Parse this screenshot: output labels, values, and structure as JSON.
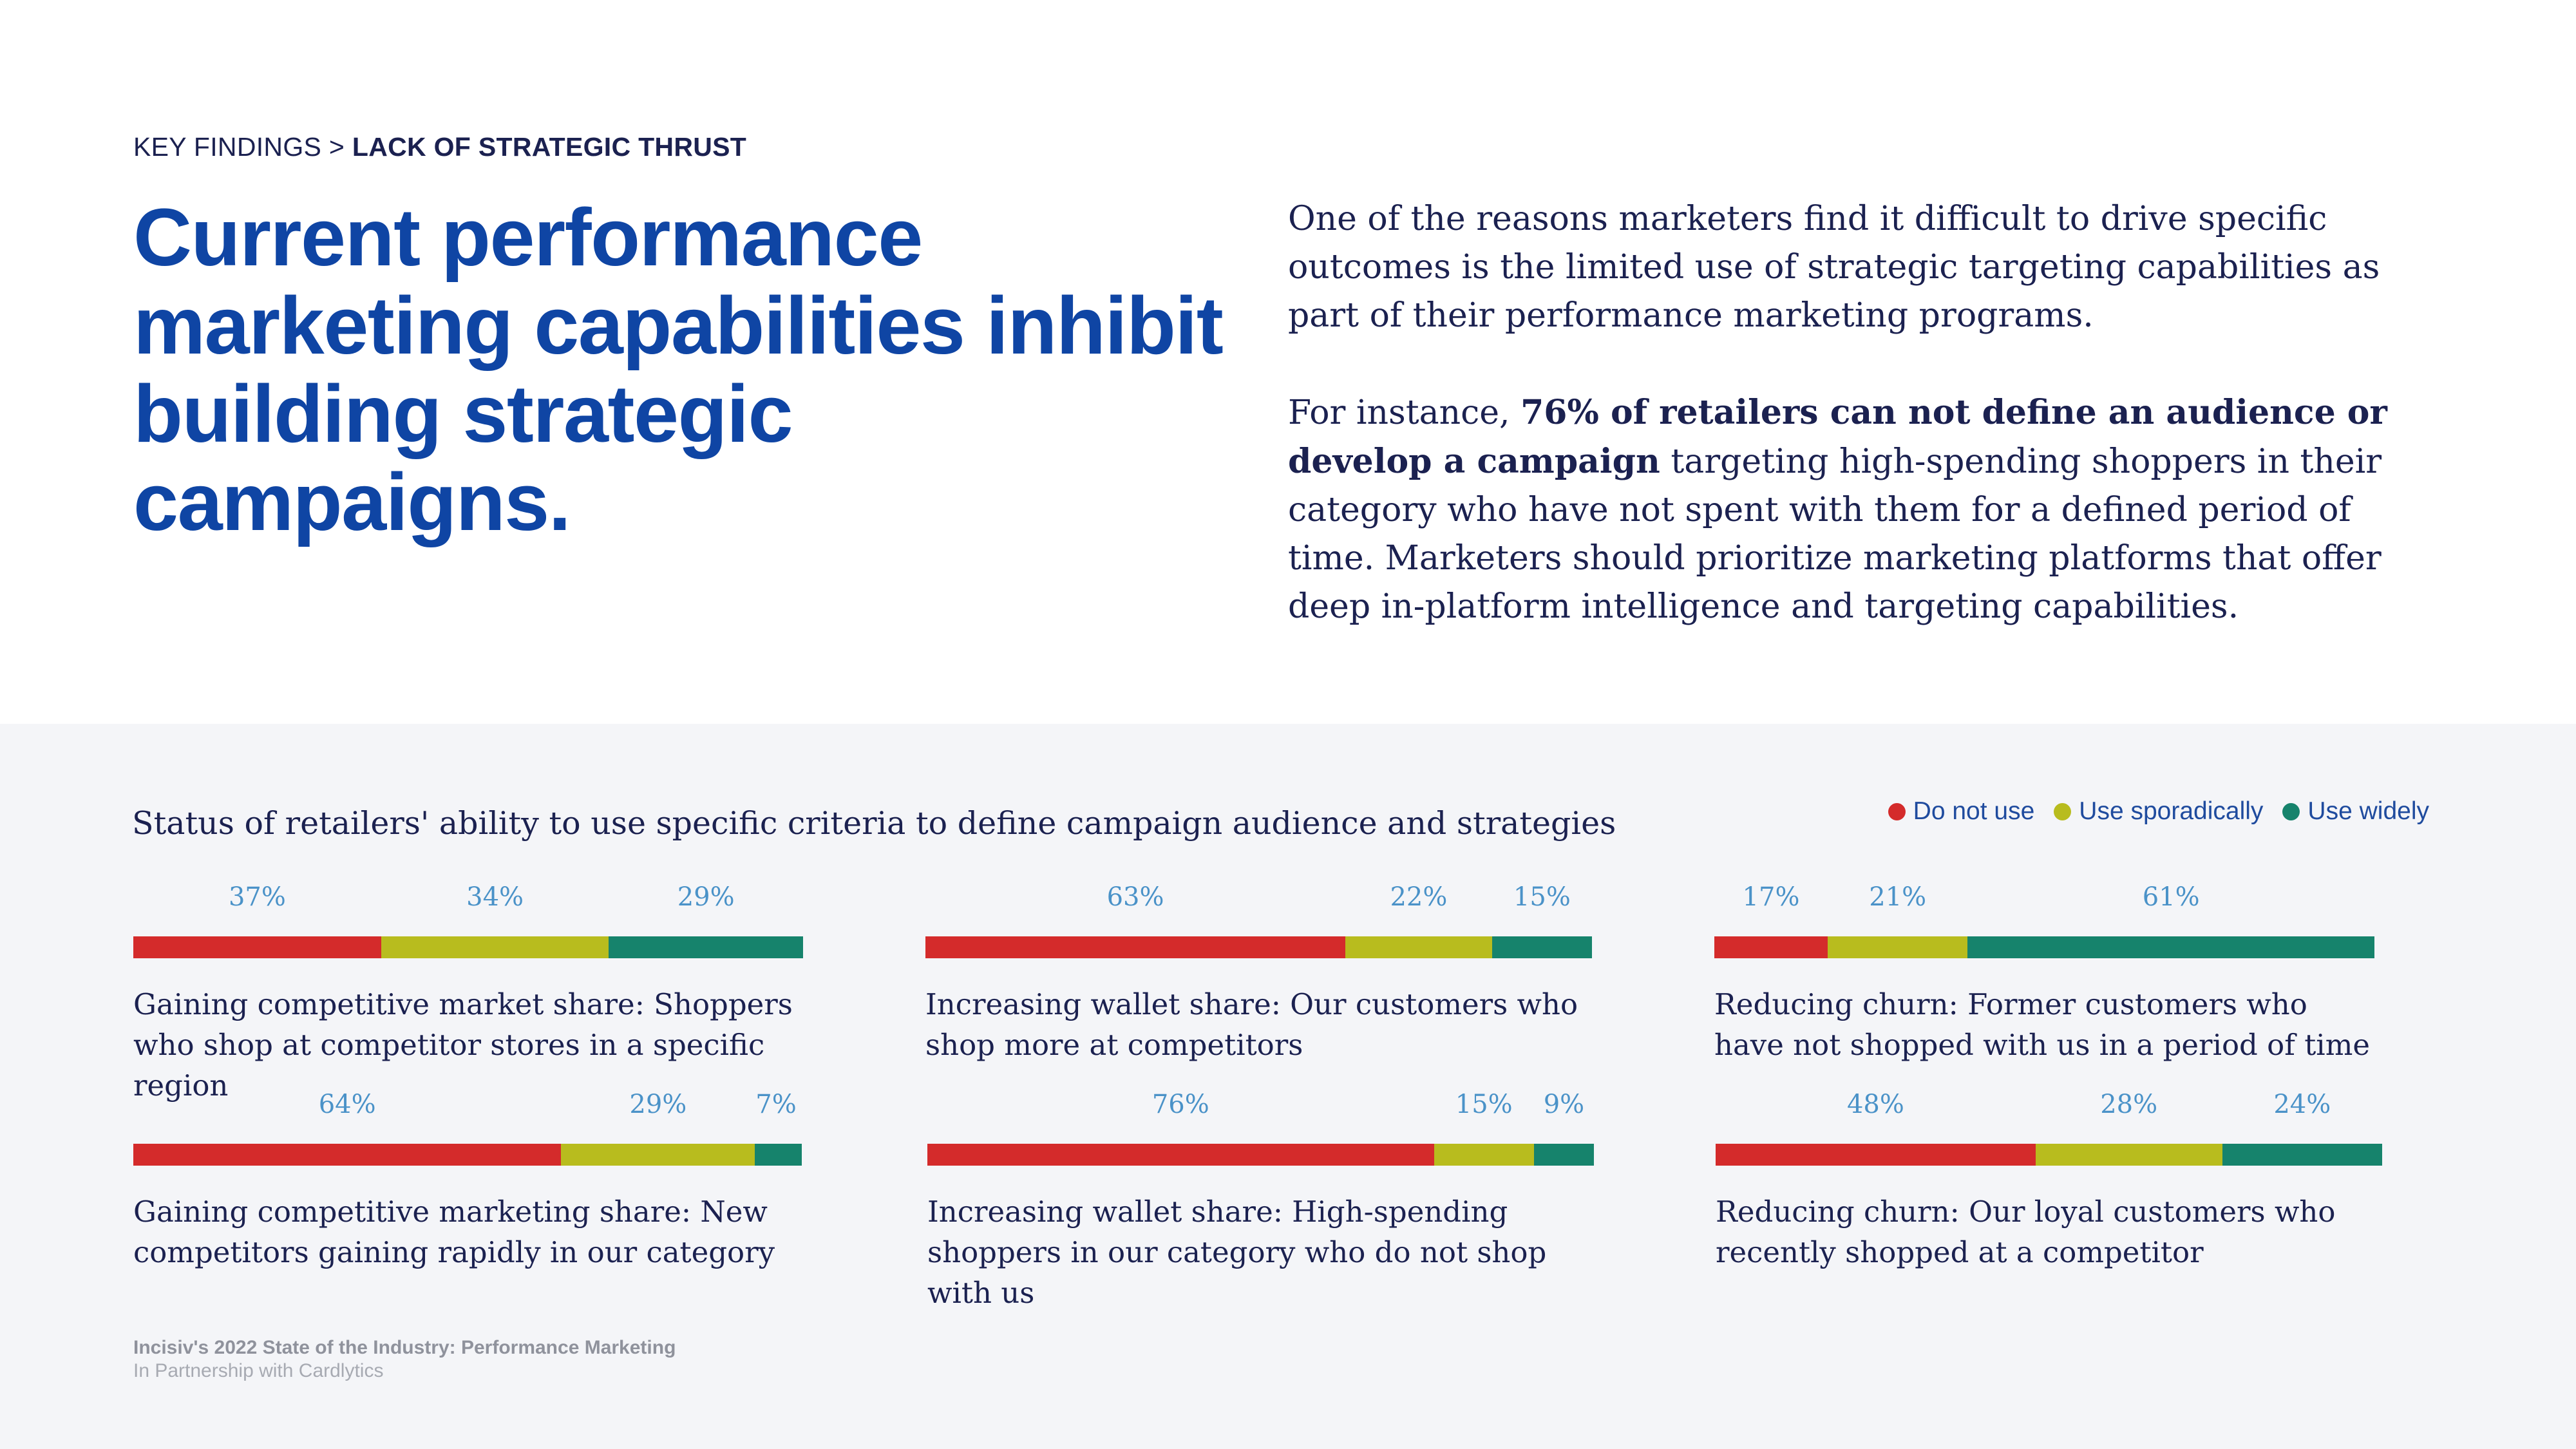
{
  "breadcrumb": {
    "section": "KEY FINDINGS",
    "separator": ">",
    "current": "LACK OF STRATEGIC THRUST"
  },
  "headline": "Current performance marketing capabilities inhibit building strategic campaigns.",
  "intro": {
    "p1": "One of the reasons marketers find it difficult to drive specific outcomes is the limited use of strategic targeting capabilities as part of their performance marketing programs.",
    "p2_start": "For instance, ",
    "p2_bold": "76% of retailers can not define an audience or develop a campaign",
    "p2_end": " targeting high-spending shoppers in their category who have not spent with them for a defined period of time. Marketers should prioritize marketing platforms that offer deep in-platform intelligence and targeting capabilities."
  },
  "colors": {
    "do_not_use": "#d42b2b",
    "use_sporadically": "#b8bc1e",
    "use_widely": "#16836c"
  },
  "chart_data": {
    "type": "bar",
    "orientation": "horizontal-stacked-100",
    "title": "Status of retailers' ability to use specific criteria to define campaign audience and strategies",
    "legend": {
      "position": "top-right",
      "entries": [
        "Do not use",
        "Use sporadically",
        "Use widely"
      ]
    },
    "panels": [
      {
        "label": "Gaining competitive market share: Shoppers who shop at competitor stores in a specific region",
        "values": [
          37,
          34,
          29
        ],
        "value_labels": [
          "37%",
          "34%",
          "29%"
        ]
      },
      {
        "label": "Increasing wallet share: Our customers who shop more at competitors",
        "values": [
          63,
          22,
          15
        ],
        "value_labels": [
          "63%",
          "22%",
          "15%"
        ]
      },
      {
        "label": "Reducing churn: Former customers who have not shopped with us in a period of time",
        "values": [
          17,
          21,
          61
        ],
        "value_labels": [
          "17%",
          "21%",
          "61%"
        ]
      },
      {
        "label": "Gaining competitive marketing share: New competitors gaining rapidly in our category",
        "values": [
          64,
          29,
          7
        ],
        "value_labels": [
          "64%",
          "29%",
          "7%"
        ]
      },
      {
        "label": "Increasing wallet share: High-spending shoppers in our category who do not shop with us",
        "values": [
          76,
          15,
          9
        ],
        "value_labels": [
          "76%",
          "15%",
          "9%"
        ]
      },
      {
        "label": "Reducing churn: Our loyal customers who recently shopped at a competitor",
        "values": [
          48,
          28,
          24
        ],
        "value_labels": [
          "48%",
          "28%",
          "24%"
        ]
      }
    ]
  },
  "footer": {
    "source": "Incisiv's 2022 State of the Industry: Performance Marketing",
    "partner": "In Partnership with Cardlytics"
  }
}
